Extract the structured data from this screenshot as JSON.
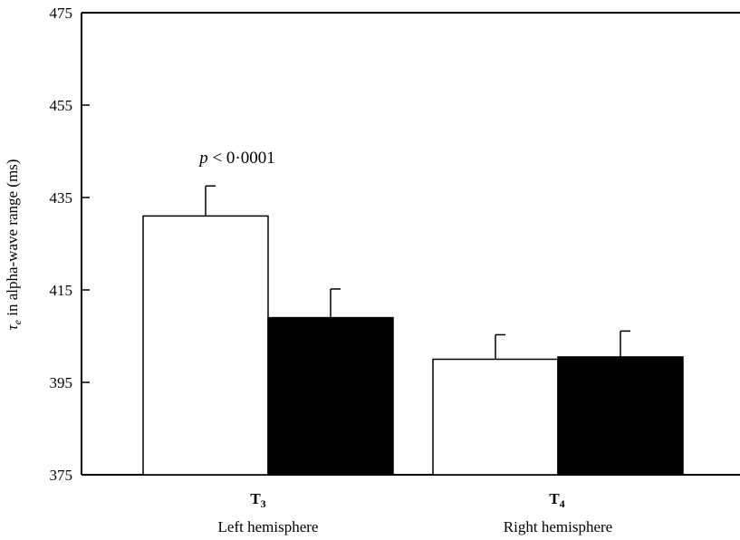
{
  "chart_data": {
    "type": "bar",
    "categories": [
      "T3",
      "T4"
    ],
    "category_main": [
      "T",
      "T"
    ],
    "category_sub": [
      "3",
      "4"
    ],
    "group_labels": [
      "Left hemisphere",
      "Right hemisphere"
    ],
    "series": [
      {
        "values": [
          431,
          400
        ],
        "errors": [
          6.5,
          5.3
        ],
        "color": "#ffffff"
      },
      {
        "values": [
          409,
          400.5
        ],
        "errors": [
          6.2,
          5.6
        ],
        "color": "#000000"
      }
    ],
    "ylabel_symbol": "τ",
    "ylabel_sub": "e",
    "ylabel_rest": " in alpha-wave range (ms)",
    "ylim": [
      375,
      475
    ],
    "yticks": [
      "375",
      "395",
      "415",
      "435",
      "455",
      "475"
    ],
    "annotation": {
      "p": "p",
      "text": " < 0·0001"
    },
    "grid": false
  }
}
